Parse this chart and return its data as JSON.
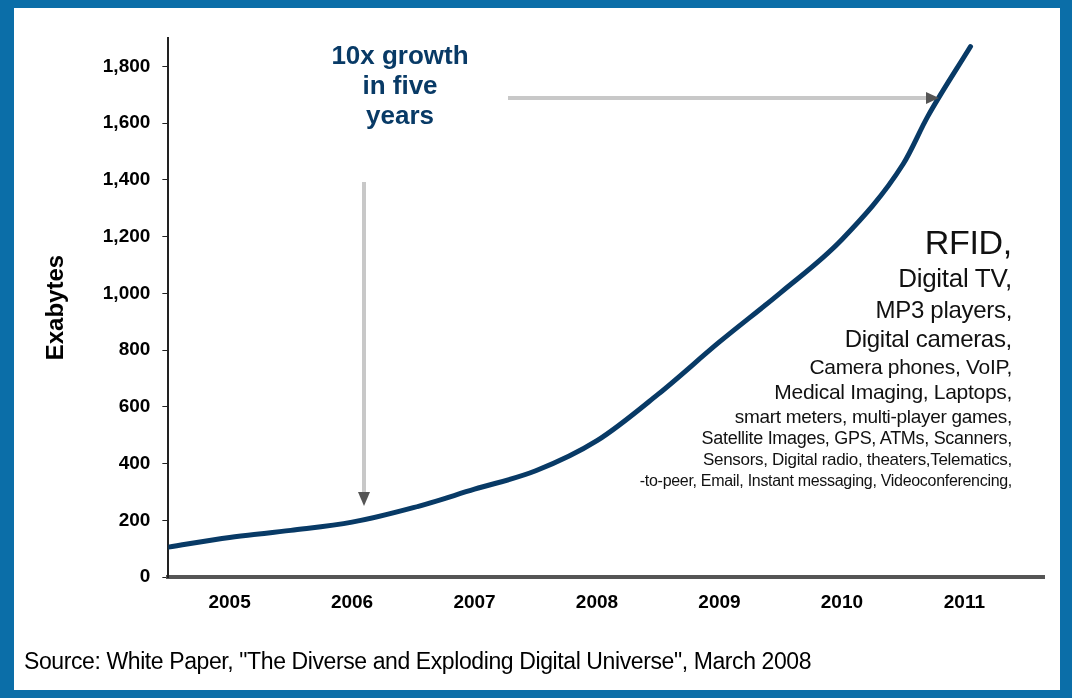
{
  "chart_data": {
    "type": "line",
    "ylabel": "Exabytes",
    "x": [
      2004.5,
      2005,
      2005.5,
      2006,
      2006.5,
      2007,
      2007.5,
      2008,
      2008.5,
      2009,
      2009.5,
      2010,
      2010.5,
      2010.7,
      2011.05
    ],
    "series": [
      {
        "color": "#083a66",
        "values": [
          106,
          140,
          165,
          194,
          245,
          310,
          375,
          481,
          645,
          829,
          1003,
          1190,
          1456,
          1623,
          1870
        ]
      }
    ],
    "xlim": [
      2004.5,
      2011.65
    ],
    "xticks": [
      2005,
      2006,
      2007,
      2008,
      2009,
      2010,
      2011
    ],
    "ylim": [
      0,
      1900
    ],
    "yticks": [
      0,
      200,
      400,
      600,
      800,
      {
        "value": 1000,
        "label": "1,000"
      },
      {
        "value": 1200,
        "label": "1,200"
      },
      {
        "value": 1400,
        "label": "1,400"
      },
      {
        "value": 1600,
        "label": "1,600"
      },
      {
        "value": 1800,
        "label": "1,800"
      }
    ],
    "grid": false,
    "legend": false,
    "marker": "none",
    "line_style": "solid",
    "annotations": [
      "10x growth in five years",
      "RFID,",
      "Digital TV,",
      "MP3 players,",
      "Digital cameras,",
      "Camera phones, VoIP,",
      "Medical Imaging, Laptops,",
      "smart meters, multi-player games,",
      "Satellite Images, GPS, ATMs, Scanners,",
      "Sensors, Digital radio, theaters,Telematics,",
      "-to-peer, Email, Instant messaging, Videoconferencing,",
      "Source: White Paper, \"The Diverse and Exploding Digital Universe\", March 2008"
    ]
  }
}
